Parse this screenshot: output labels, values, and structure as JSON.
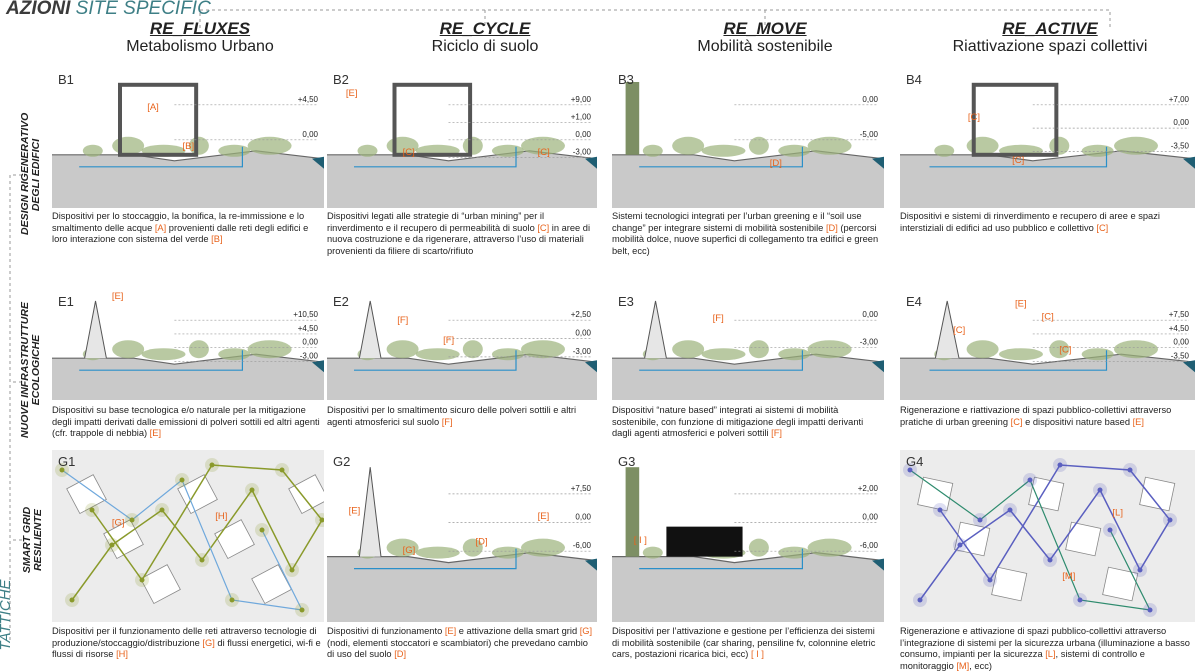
{
  "header": {
    "prefix": "AZIONI",
    "highlight": "SITE SPECIFIC"
  },
  "columns": [
    {
      "title": "RE_FLUXES",
      "subtitle": "Metabolismo Urbano"
    },
    {
      "title": "RE_CYCLE",
      "subtitle": "Riciclo di suolo"
    },
    {
      "title": "RE_MOVE",
      "subtitle": "Mobilità sostenibile"
    },
    {
      "title": "RE_ACTIVE",
      "subtitle": "Riattivazione spazi collettivi"
    }
  ],
  "tactic": "TATTICHE",
  "rows": [
    {
      "label": [
        "DESIGN RIGENERATIVO",
        "DEGLI EDIFICI"
      ],
      "cells": [
        {
          "code": "B1",
          "tags": [
            "[A]",
            "[B]"
          ],
          "levels": [
            "+4,50",
            "0,00"
          ],
          "text": "Dispositivi per lo stoccaggio, la bonifica, la re-immissione e lo smaltimento delle acque [A] provenienti dalle reti degli edifici e loro interazione con sistema del verde [B]"
        },
        {
          "code": "B2",
          "tags": [
            "[E]",
            "[C]",
            "[C]"
          ],
          "levels": [
            "+9,00",
            "+1,00",
            "0,00",
            "-3,00"
          ],
          "text": "Dispositivi legati alle strategie di “urban mining” per il rinverdimento e il recupero di permeabilità di suolo [C] in aree di nuova costruzione e da rigenerare, attraverso l’uso di materiali provenienti da filiere di scarto/rifiuto"
        },
        {
          "code": "B3",
          "tags": [
            "[D]"
          ],
          "levels": [
            "0,00",
            "-5,00"
          ],
          "text": "Sistemi tecnologici integrati per l’urban greening e il “soil use change” per integrare sistemi di mobilità sostenibile [D] (percorsi mobilità dolce, nuove superfici di collegamento tra edifici e green belt, ecc)"
        },
        {
          "code": "B4",
          "tags": [
            "[C]",
            "[C]"
          ],
          "levels": [
            "+7,00",
            "0,00",
            "-3,50"
          ],
          "text": "Dispositivi e sistemi di rinverdimento e recupero di aree e spazi interstiziali di edifici ad uso pubblico e collettivo [C]"
        }
      ]
    },
    {
      "label": [
        "NUOVE INFRASTRUTTURE",
        "ECOLOGICHE"
      ],
      "cells": [
        {
          "code": "E1",
          "tags": [
            "[E]"
          ],
          "levels": [
            "+10,50",
            "+4,50",
            "0,00",
            "-3,00"
          ],
          "text": "Dispositivi su base tecnologica e/o naturale per la mitigazione degli impatti derivati dalle emissioni di polveri sottili ed altri agenti (cfr. trappole di nebbia) [E]"
        },
        {
          "code": "E2",
          "tags": [
            "[F]",
            "[F]"
          ],
          "levels": [
            "+2,50",
            "0,00",
            "-3,00"
          ],
          "text": "Dispositivi per lo smaltimento sicuro delle polveri sottili e altri agenti atmosferici sul suolo [F]"
        },
        {
          "code": "E3",
          "tags": [
            "[F]"
          ],
          "levels": [
            "0,00",
            "-3,00"
          ],
          "text": "Dispositivi “nature based” integrati ai sistemi di mobilità sostenibile, con funzione di mitigazione degli impatti derivanti dagli agenti atmosferici e polveri sottili [F]"
        },
        {
          "code": "E4",
          "tags": [
            "[E]",
            "[C]",
            "[C]",
            "[C]"
          ],
          "levels": [
            "+7,50",
            "+4,50",
            "0,00",
            "-3,50"
          ],
          "text": "Rigenerazione e riattivazione di spazi pubblico-collettivi attraverso pratiche di urban greening [C] e dispositivi nature based [E]"
        }
      ]
    },
    {
      "label": [
        "SMART GRID",
        "RESILIENTE"
      ],
      "cells": [
        {
          "code": "G1",
          "tags": [
            "[G]",
            "[H]"
          ],
          "levels": [],
          "text": "Dispositivi per il funzionamento delle reti attraverso tecnologie di produzione/stoccaggio/distribuzione [G] di flussi energetici, wi-fi e flussi di risorse [H]"
        },
        {
          "code": "G2",
          "tags": [
            "[E]",
            "[G]",
            "[D]",
            "[E]"
          ],
          "levels": [
            "+7,50",
            "0,00",
            "-6,00"
          ],
          "text": "Dispositivi di funzionamento [E] e attivazione della smart grid [G] (nodi, elementi stoccatori e scambiatori) che prevedano cambio di uso del suolo [D]"
        },
        {
          "code": "G3",
          "tags": [
            "[ I ]"
          ],
          "levels": [
            "+2,00",
            "0,00",
            "-6,00"
          ],
          "text": "Dispositivi per l’attivazione e gestione per l’efficienza dei sistemi di mobilità sostenibile (car sharing, pensiline fv, colonnine eletric cars, postazioni ricarica bici, ecc) [ I ]"
        },
        {
          "code": "G4",
          "tags": [
            "[L]",
            "[M]"
          ],
          "levels": [],
          "text": "Rigenerazione e attivazione di spazi pubblico-collettivi attraverso l’integrazione di sistemi per la sicurezza urbana (illuminazione a basso consumo, impianti per la sicurezza [L], sistemi di controllo e monitoraggio [M], ecc)"
        }
      ]
    }
  ]
}
